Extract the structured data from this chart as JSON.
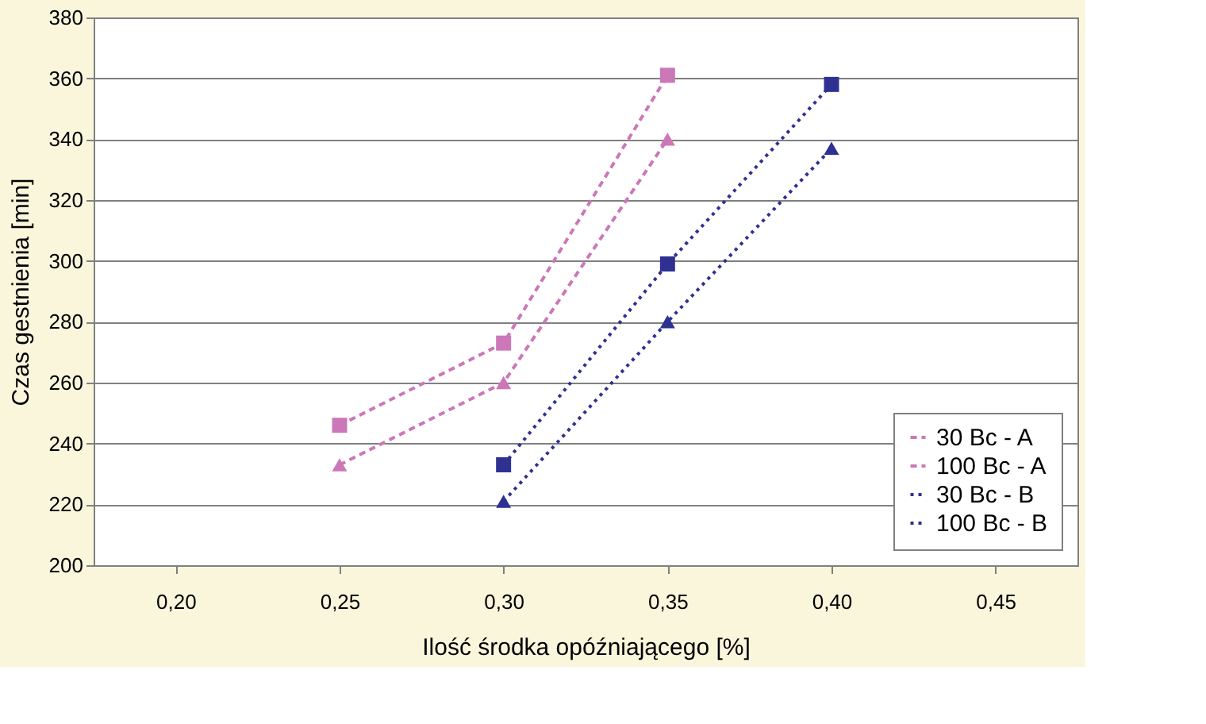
{
  "chart_data": {
    "type": "line",
    "xlabel": "Ilość środka opóźniającego [%]",
    "ylabel": "Czas gestnienia [min]",
    "xlim": [
      0.175,
      0.475
    ],
    "xticks": [
      {
        "value": 0.2,
        "label": "0,20"
      },
      {
        "value": 0.25,
        "label": "0,25"
      },
      {
        "value": 0.3,
        "label": "0,30"
      },
      {
        "value": 0.35,
        "label": "0,35"
      },
      {
        "value": 0.4,
        "label": "0,40"
      },
      {
        "value": 0.45,
        "label": "0,45"
      }
    ],
    "ylim": [
      200,
      380
    ],
    "yticks": [
      200,
      220,
      240,
      260,
      280,
      300,
      320,
      340,
      360,
      380
    ],
    "grid": "y",
    "legend": "bottom right",
    "series": [
      {
        "name": "30 Bc - A",
        "color": "#cc77b8",
        "marker": "triangle",
        "line_style": "dashed",
        "x": [
          0.25,
          0.3,
          0.35
        ],
        "values": [
          233,
          260,
          340
        ]
      },
      {
        "name": "100 Bc - A",
        "color": "#cc77b8",
        "marker": "square",
        "line_style": "dashed",
        "x": [
          0.25,
          0.3,
          0.35
        ],
        "values": [
          246,
          273,
          361
        ]
      },
      {
        "name": "30 Bc - B",
        "color": "#2e3192",
        "marker": "triangle",
        "line_style": "dotted",
        "x": [
          0.3,
          0.35,
          0.4
        ],
        "values": [
          221,
          280,
          337
        ]
      },
      {
        "name": "100 Bc - B",
        "color": "#2e3192",
        "marker": "square",
        "line_style": "dotted",
        "x": [
          0.3,
          0.35,
          0.4
        ],
        "values": [
          233,
          299,
          358
        ]
      }
    ]
  }
}
